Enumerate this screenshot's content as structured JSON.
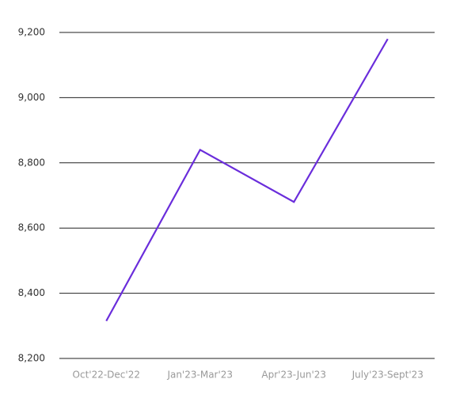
{
  "chart_data": {
    "type": "line",
    "categories": [
      "Oct'22-Dec'22",
      "Jan'23-Mar'23",
      "Apr'23-Jun'23",
      "July'23-Sept'23"
    ],
    "series": [
      {
        "color": "#6a2ddb",
        "values": [
          8315,
          8840,
          8680,
          9180
        ]
      }
    ],
    "ylim": [
      8200,
      9200
    ],
    "yticks": [
      {
        "value": 8200,
        "label": "8,200"
      },
      {
        "value": 8400,
        "label": "8,400"
      },
      {
        "value": 8600,
        "label": "8,600"
      },
      {
        "value": 8800,
        "label": "8,800"
      },
      {
        "value": 9000,
        "label": "9,000"
      },
      {
        "value": 9200,
        "label": "9,200"
      }
    ],
    "grid": true
  }
}
